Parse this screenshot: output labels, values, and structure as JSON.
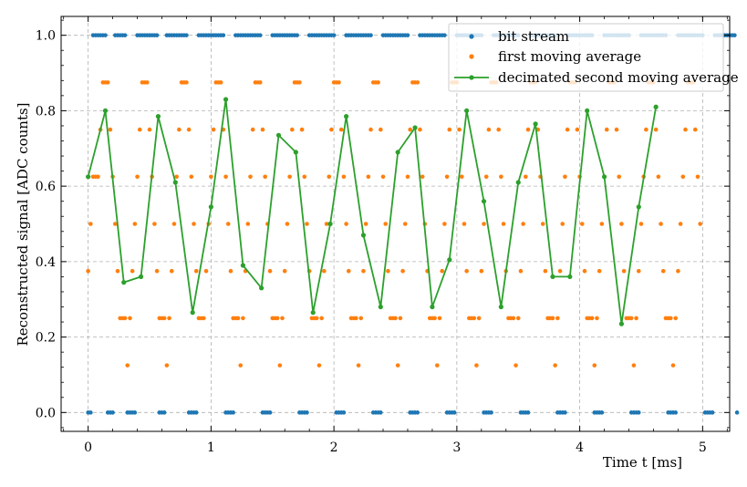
{
  "chart_data": {
    "type": "scatter",
    "xlabel": "Time t [ms]",
    "ylabel": "Reconstructed signal [ADC counts]",
    "xlim": [
      -0.22,
      5.22
    ],
    "ylim": [
      -0.05,
      1.05
    ],
    "x_ticks": [
      "0",
      "1",
      "2",
      "3",
      "4",
      "5"
    ],
    "x_tick_values": [
      0,
      1,
      2,
      3,
      4,
      5
    ],
    "y_ticks": [
      "0.0",
      "0.2",
      "0.4",
      "0.6",
      "0.8",
      "1.0"
    ],
    "y_tick_values": [
      0,
      0.2,
      0.4,
      0.6,
      0.8,
      1.0
    ],
    "grid": true,
    "legend_position": "top-right",
    "series": [
      {
        "name": "bit stream",
        "kind": "points",
        "color": "#1f77b4",
        "sample_spacing_ms": 0.02,
        "x_start": 0.0,
        "bits": "0011111100011111000011111111100011111111100001111111111100001111111111100001111111111100001111111111100001111111111100001111111111100001111111111100001111111111100001111111111100001111111111100001111111111100001111111111100001111111111100001111111111100001111111110"
      },
      {
        "name": "first moving average",
        "kind": "points",
        "color": "#ff7f0e",
        "points": [
          [
            0.0,
            0.375
          ],
          [
            0.02,
            0.5
          ],
          [
            0.04,
            0.625
          ],
          [
            0.06,
            0.625
          ],
          [
            0.08,
            0.625
          ],
          [
            0.1,
            0.75
          ],
          [
            0.12,
            0.875
          ],
          [
            0.14,
            0.875
          ],
          [
            0.16,
            0.875
          ],
          [
            0.18,
            0.75
          ],
          [
            0.2,
            0.625
          ],
          [
            0.22,
            0.5
          ],
          [
            0.24,
            0.375
          ],
          [
            0.26,
            0.25
          ],
          [
            0.28,
            0.25
          ],
          [
            0.3,
            0.25
          ],
          [
            0.32,
            0.125
          ],
          [
            0.34,
            0.25
          ],
          [
            0.36,
            0.375
          ],
          [
            0.38,
            0.5
          ],
          [
            0.4,
            0.625
          ],
          [
            0.42,
            0.75
          ],
          [
            0.44,
            0.875
          ],
          [
            0.46,
            0.875
          ],
          [
            0.48,
            0.875
          ],
          [
            0.5,
            0.75
          ],
          [
            0.52,
            0.625
          ],
          [
            0.54,
            0.5
          ],
          [
            0.56,
            0.375
          ],
          [
            0.58,
            0.25
          ],
          [
            0.6,
            0.25
          ],
          [
            0.62,
            0.25
          ],
          [
            0.64,
            0.125
          ],
          [
            0.66,
            0.25
          ],
          [
            0.68,
            0.375
          ],
          [
            0.7,
            0.5
          ],
          [
            0.72,
            0.625
          ],
          [
            0.74,
            0.75
          ],
          [
            0.76,
            0.875
          ],
          [
            0.78,
            0.875
          ],
          [
            0.8,
            0.875
          ],
          [
            0.82,
            0.75
          ],
          [
            0.84,
            0.625
          ],
          [
            0.86,
            0.5
          ],
          [
            0.88,
            0.375
          ],
          [
            0.9,
            0.25
          ],
          [
            0.92,
            0.25
          ],
          [
            0.94,
            0.25
          ],
          [
            0.96,
            0.375
          ],
          [
            0.98,
            0.5
          ],
          [
            1.0,
            0.625
          ],
          [
            1.02,
            0.75
          ],
          [
            1.04,
            0.875
          ],
          [
            1.06,
            0.875
          ],
          [
            1.08,
            0.875
          ],
          [
            1.1,
            0.75
          ],
          [
            1.12,
            0.625
          ],
          [
            1.14,
            0.5
          ],
          [
            1.16,
            0.375
          ],
          [
            1.18,
            0.25
          ],
          [
            1.2,
            0.25
          ],
          [
            1.22,
            0.25
          ],
          [
            1.24,
            0.125
          ],
          [
            1.26,
            0.25
          ],
          [
            1.28,
            0.375
          ],
          [
            1.3,
            0.5
          ],
          [
            1.32,
            0.625
          ],
          [
            1.34,
            0.75
          ],
          [
            1.36,
            0.875
          ],
          [
            1.38,
            0.875
          ],
          [
            1.4,
            0.875
          ],
          [
            1.42,
            0.75
          ],
          [
            1.44,
            0.625
          ],
          [
            1.46,
            0.5
          ],
          [
            1.48,
            0.375
          ],
          [
            1.5,
            0.25
          ],
          [
            1.52,
            0.25
          ],
          [
            1.54,
            0.25
          ],
          [
            1.56,
            0.125
          ],
          [
            1.58,
            0.25
          ],
          [
            1.6,
            0.375
          ],
          [
            1.62,
            0.5
          ],
          [
            1.64,
            0.625
          ],
          [
            1.66,
            0.75
          ],
          [
            1.68,
            0.875
          ],
          [
            1.7,
            0.875
          ],
          [
            1.72,
            0.875
          ],
          [
            1.74,
            0.75
          ],
          [
            1.76,
            0.625
          ],
          [
            1.78,
            0.5
          ],
          [
            1.8,
            0.375
          ],
          [
            1.82,
            0.25
          ],
          [
            1.84,
            0.25
          ],
          [
            1.86,
            0.25
          ],
          [
            1.88,
            0.125
          ],
          [
            1.9,
            0.25
          ],
          [
            1.92,
            0.375
          ],
          [
            1.94,
            0.5
          ],
          [
            1.96,
            0.625
          ],
          [
            1.98,
            0.75
          ],
          [
            2.0,
            0.875
          ],
          [
            2.02,
            0.875
          ],
          [
            2.04,
            0.875
          ],
          [
            2.06,
            0.75
          ],
          [
            2.08,
            0.625
          ],
          [
            2.1,
            0.5
          ],
          [
            2.12,
            0.375
          ],
          [
            2.14,
            0.25
          ],
          [
            2.16,
            0.25
          ],
          [
            2.18,
            0.25
          ],
          [
            2.2,
            0.125
          ],
          [
            2.22,
            0.25
          ],
          [
            2.24,
            0.375
          ],
          [
            2.26,
            0.5
          ],
          [
            2.28,
            0.625
          ],
          [
            2.3,
            0.75
          ],
          [
            2.32,
            0.875
          ],
          [
            2.34,
            0.875
          ],
          [
            2.36,
            0.875
          ],
          [
            2.38,
            0.75
          ],
          [
            2.4,
            0.625
          ],
          [
            2.42,
            0.5
          ],
          [
            2.44,
            0.375
          ],
          [
            2.46,
            0.25
          ],
          [
            2.48,
            0.25
          ],
          [
            2.5,
            0.25
          ],
          [
            2.52,
            0.125
          ],
          [
            2.54,
            0.25
          ],
          [
            2.56,
            0.375
          ],
          [
            2.58,
            0.5
          ],
          [
            2.6,
            0.625
          ],
          [
            2.62,
            0.75
          ],
          [
            2.64,
            0.875
          ],
          [
            2.66,
            0.875
          ],
          [
            2.68,
            0.875
          ],
          [
            2.7,
            0.75
          ],
          [
            2.72,
            0.625
          ],
          [
            2.74,
            0.5
          ],
          [
            2.76,
            0.375
          ],
          [
            2.78,
            0.25
          ],
          [
            2.8,
            0.25
          ],
          [
            2.82,
            0.25
          ],
          [
            2.84,
            0.125
          ],
          [
            2.86,
            0.25
          ],
          [
            2.88,
            0.375
          ],
          [
            2.9,
            0.5
          ],
          [
            2.92,
            0.625
          ],
          [
            2.94,
            0.75
          ],
          [
            2.96,
            0.875
          ],
          [
            2.98,
            0.875
          ],
          [
            3.0,
            0.875
          ],
          [
            3.02,
            0.75
          ],
          [
            3.04,
            0.625
          ],
          [
            3.06,
            0.5
          ],
          [
            3.08,
            0.375
          ],
          [
            3.1,
            0.25
          ],
          [
            3.12,
            0.25
          ],
          [
            3.14,
            0.25
          ],
          [
            3.16,
            0.125
          ],
          [
            3.18,
            0.25
          ],
          [
            3.2,
            0.375
          ],
          [
            3.22,
            0.5
          ],
          [
            3.24,
            0.625
          ],
          [
            3.26,
            0.75
          ],
          [
            3.28,
            0.875
          ],
          [
            3.3,
            0.875
          ],
          [
            3.32,
            0.875
          ],
          [
            3.34,
            0.75
          ],
          [
            3.36,
            0.625
          ],
          [
            3.38,
            0.5
          ],
          [
            3.4,
            0.375
          ],
          [
            3.42,
            0.25
          ],
          [
            3.44,
            0.25
          ],
          [
            3.46,
            0.25
          ],
          [
            3.48,
            0.125
          ],
          [
            3.5,
            0.25
          ],
          [
            3.52,
            0.375
          ],
          [
            3.54,
            0.5
          ],
          [
            3.56,
            0.625
          ],
          [
            3.58,
            0.75
          ],
          [
            3.6,
            0.875
          ],
          [
            3.62,
            0.875
          ],
          [
            3.64,
            0.875
          ],
          [
            3.66,
            0.75
          ],
          [
            3.68,
            0.625
          ],
          [
            3.7,
            0.5
          ],
          [
            3.72,
            0.375
          ],
          [
            3.74,
            0.25
          ],
          [
            3.76,
            0.25
          ],
          [
            3.78,
            0.25
          ],
          [
            3.8,
            0.125
          ],
          [
            3.82,
            0.25
          ],
          [
            3.84,
            0.375
          ],
          [
            3.86,
            0.5
          ],
          [
            3.88,
            0.625
          ],
          [
            3.9,
            0.75
          ],
          [
            3.92,
            0.875
          ],
          [
            3.94,
            0.875
          ],
          [
            3.96,
            0.875
          ],
          [
            3.98,
            0.75
          ],
          [
            4.0,
            0.625
          ],
          [
            4.02,
            0.5
          ],
          [
            4.04,
            0.375
          ],
          [
            4.06,
            0.25
          ],
          [
            4.08,
            0.25
          ],
          [
            4.1,
            0.25
          ],
          [
            4.12,
            0.125
          ],
          [
            4.14,
            0.25
          ],
          [
            4.16,
            0.375
          ],
          [
            4.18,
            0.5
          ],
          [
            4.2,
            0.625
          ],
          [
            4.22,
            0.75
          ],
          [
            4.24,
            0.875
          ],
          [
            4.26,
            0.875
          ],
          [
            4.28,
            0.875
          ],
          [
            4.3,
            0.75
          ],
          [
            4.32,
            0.625
          ],
          [
            4.34,
            0.5
          ],
          [
            4.36,
            0.375
          ],
          [
            4.38,
            0.25
          ],
          [
            4.4,
            0.25
          ],
          [
            4.42,
            0.25
          ],
          [
            4.44,
            0.125
          ],
          [
            4.46,
            0.25
          ],
          [
            4.48,
            0.375
          ],
          [
            4.5,
            0.5
          ],
          [
            4.52,
            0.625
          ],
          [
            4.54,
            0.75
          ],
          [
            4.56,
            0.875
          ],
          [
            4.58,
            0.875
          ],
          [
            4.6,
            0.875
          ],
          [
            4.62,
            0.75
          ],
          [
            4.64,
            0.625
          ],
          [
            4.66,
            0.5
          ],
          [
            4.68,
            0.375
          ],
          [
            4.7,
            0.25
          ],
          [
            4.72,
            0.25
          ],
          [
            4.74,
            0.25
          ],
          [
            4.76,
            0.125
          ],
          [
            4.78,
            0.25
          ],
          [
            4.8,
            0.375
          ],
          [
            4.82,
            0.5
          ],
          [
            4.84,
            0.625
          ],
          [
            4.86,
            0.75
          ],
          [
            4.88,
            0.875
          ],
          [
            4.9,
            0.875
          ],
          [
            4.92,
            0.875
          ],
          [
            4.94,
            0.75
          ],
          [
            4.96,
            0.625
          ],
          [
            4.98,
            0.5
          ]
        ]
      },
      {
        "name": "decimated second moving average",
        "kind": "line",
        "color": "#2ca02c",
        "x": [
          0.0,
          0.14,
          0.29,
          0.43,
          0.57,
          0.71,
          0.85,
          1.0,
          1.12,
          1.26,
          1.41,
          1.55,
          1.69,
          1.83,
          1.97,
          2.1,
          2.24,
          2.38,
          2.52,
          2.66,
          2.8,
          2.94,
          3.08,
          3.22,
          3.36,
          3.5,
          3.64,
          3.78,
          3.92,
          4.06,
          4.2,
          4.34,
          4.48,
          4.62
        ],
        "y": [
          0.625,
          0.8,
          0.345,
          0.36,
          0.785,
          0.61,
          0.265,
          0.545,
          0.83,
          0.39,
          0.33,
          0.735,
          0.69,
          0.265,
          0.5,
          0.785,
          0.47,
          0.28,
          0.69,
          0.755,
          0.28,
          0.405,
          0.8,
          0.56,
          0.28,
          0.61,
          0.765,
          0.36,
          0.36,
          0.8,
          0.625,
          0.235,
          0.545,
          0.81
        ]
      }
    ]
  }
}
